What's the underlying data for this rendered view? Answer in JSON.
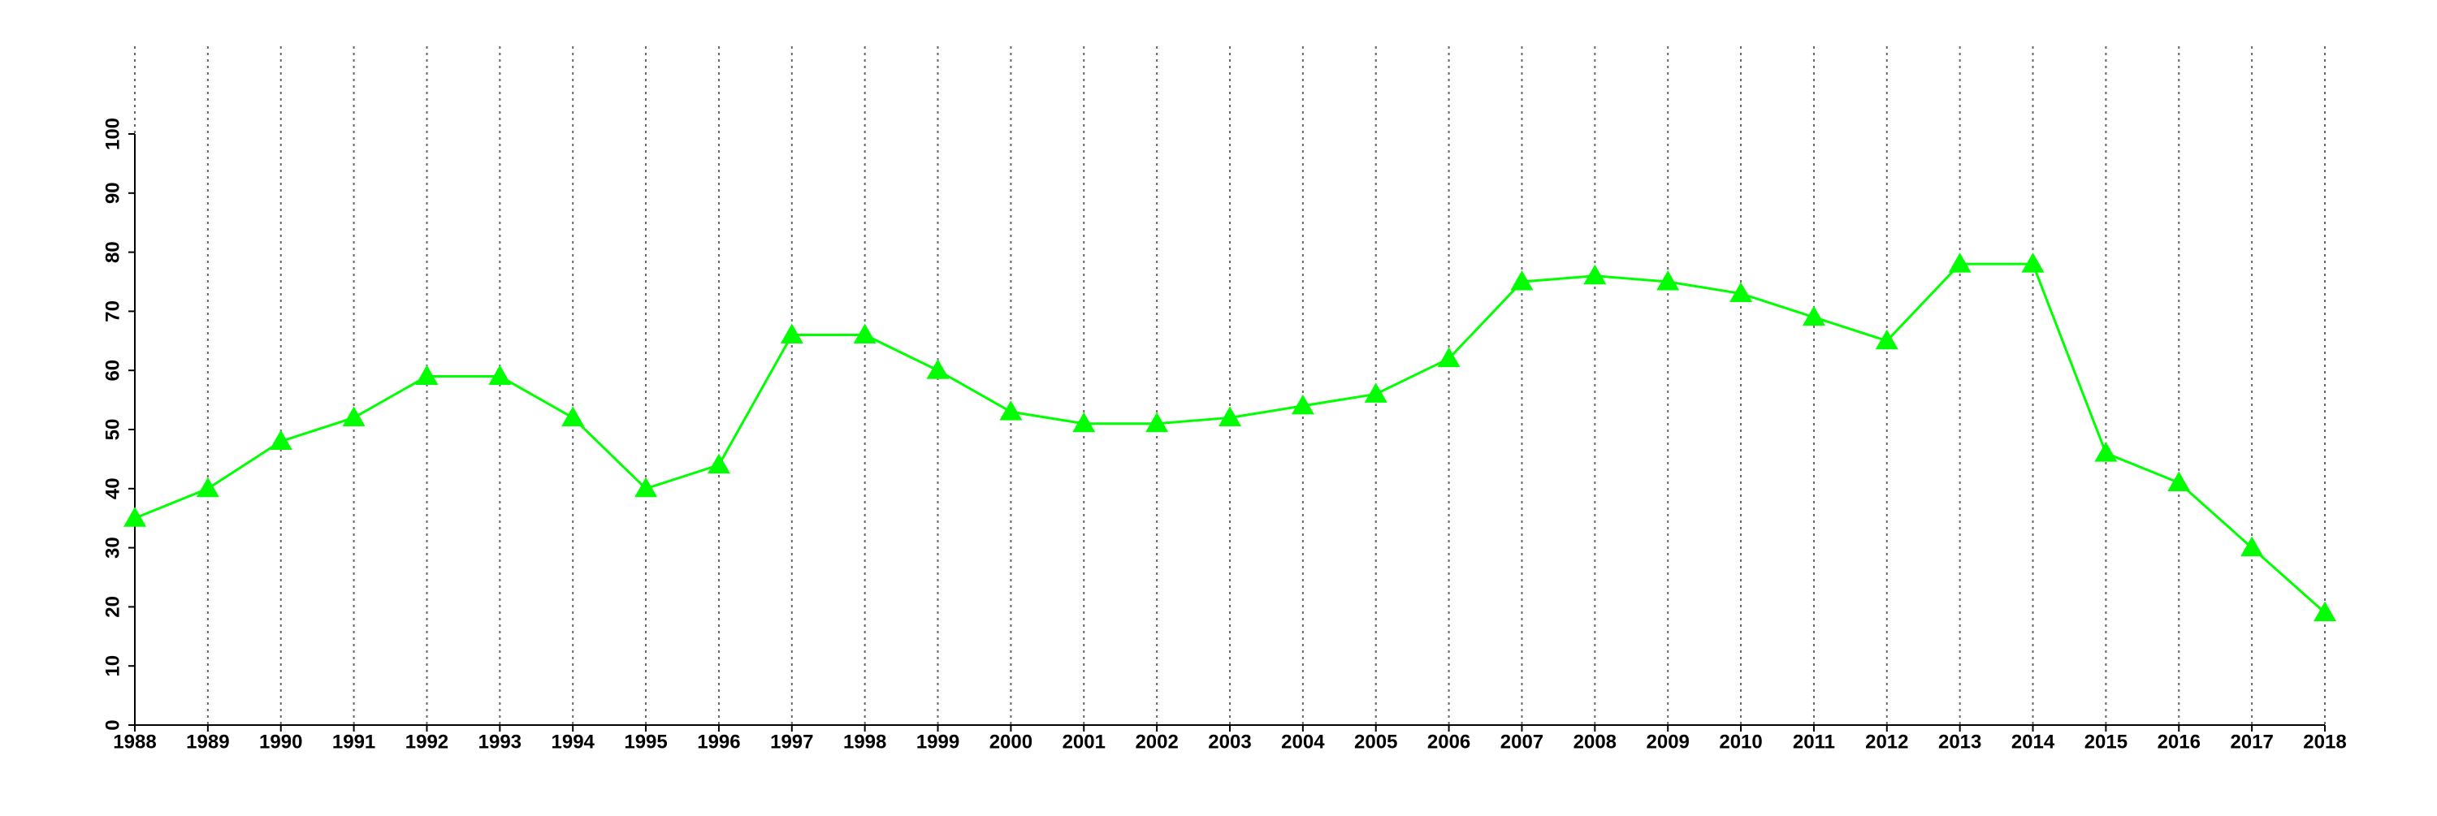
{
  "chart_data": {
    "type": "line",
    "x": [
      1988,
      1989,
      1990,
      1991,
      1992,
      1993,
      1994,
      1995,
      1996,
      1997,
      1998,
      1999,
      2000,
      2001,
      2002,
      2003,
      2004,
      2005,
      2006,
      2007,
      2008,
      2009,
      2010,
      2011,
      2012,
      2013,
      2014,
      2015,
      2016,
      2017,
      2018
    ],
    "values": [
      35,
      40,
      48,
      52,
      59,
      59,
      52,
      40,
      44,
      66,
      66,
      60,
      53,
      51,
      51,
      52,
      54,
      56,
      62,
      75,
      76,
      75,
      73,
      69,
      65,
      78,
      78,
      46,
      41,
      30,
      19
    ],
    "color": "#00ff00",
    "marker": "triangle",
    "xlim": [
      1988,
      2018
    ],
    "xticks": [
      1988,
      1989,
      1990,
      1991,
      1992,
      1993,
      1994,
      1995,
      1996,
      1997,
      1998,
      1999,
      2000,
      2001,
      2002,
      2003,
      2004,
      2005,
      2006,
      2007,
      2008,
      2009,
      2010,
      2011,
      2012,
      2013,
      2014,
      2015,
      2016,
      2017,
      2018
    ],
    "ylim": [
      0,
      100
    ],
    "yticks": [
      0,
      10,
      20,
      30,
      40,
      50,
      60,
      70,
      80,
      90,
      100
    ],
    "grid": "x"
  }
}
